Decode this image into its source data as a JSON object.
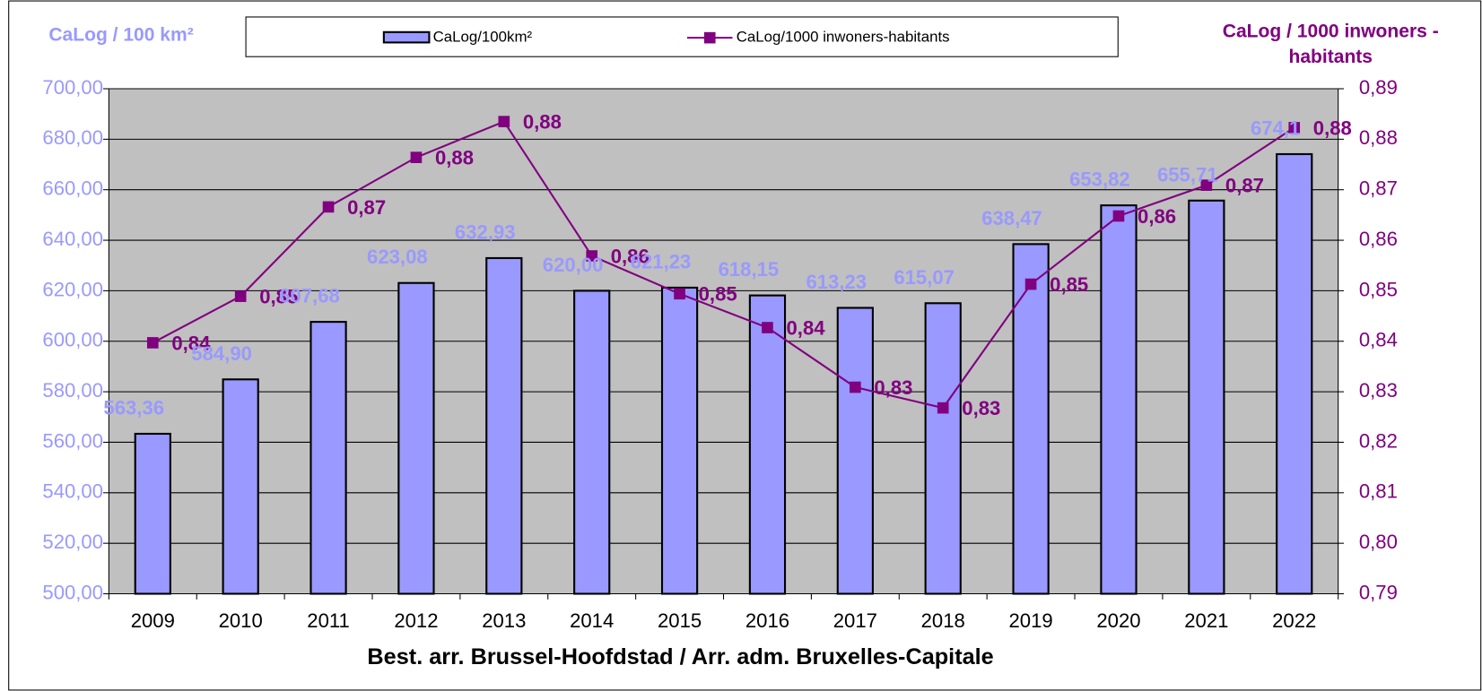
{
  "chart_data": {
    "type": "bar_line",
    "y_label": "CaLog / 100 km²",
    "y2_label": [
      "CaLog / 1000 inwoners -",
      "habitants"
    ],
    "x_label": "Best. arr. Brussel-Hoofdstad / Arr. adm. Bruxelles-Capitale",
    "categories": [
      "2009",
      "2010",
      "2011",
      "2012",
      "2013",
      "2014",
      "2015",
      "2016",
      "2017",
      "2018",
      "2019",
      "2020",
      "2021",
      "2022"
    ],
    "series": [
      {
        "name": "CaLog/100km²",
        "type": "bar",
        "color": "#9999ff",
        "values": [
          563.36,
          584.9,
          607.68,
          623.08,
          632.93,
          620.0,
          621.23,
          618.15,
          613.23,
          615.07,
          638.47,
          653.82,
          655.71,
          674.1
        ],
        "value_labels": [
          "563,36",
          "584,90",
          "607,68",
          "623,08",
          "632,93",
          "620,00",
          "621,23",
          "618,15",
          "613,23",
          "615,07",
          "638,47",
          "653,82",
          "655,71",
          "674,1"
        ]
      },
      {
        "name": "CaLog/1000 inwoners-habitants",
        "type": "line",
        "axis": "y2",
        "color": "#800080",
        "values": [
          0.8397,
          0.8489,
          0.8666,
          0.8764,
          0.8835,
          0.8569,
          0.8494,
          0.8427,
          0.8309,
          0.8268,
          0.8513,
          0.8648,
          0.8709,
          0.8823
        ],
        "value_labels": [
          "0,84",
          "0,85",
          "0,87",
          "0,88",
          "0,88",
          "0,86",
          "0,85",
          "0,84",
          "0,83",
          "0,83",
          "0,85",
          "0,86",
          "0,87",
          "0,88"
        ]
      }
    ],
    "ylim": [
      500,
      700
    ],
    "yticks": [
      {
        "value": 500,
        "label": "500,00"
      },
      {
        "value": 520,
        "label": "520,00"
      },
      {
        "value": 540,
        "label": "540,00"
      },
      {
        "value": 560,
        "label": "560,00"
      },
      {
        "value": 580,
        "label": "580,00"
      },
      {
        "value": 600,
        "label": "600,00"
      },
      {
        "value": 620,
        "label": "620,00"
      },
      {
        "value": 640,
        "label": "640,00"
      },
      {
        "value": 660,
        "label": "660,00"
      },
      {
        "value": 680,
        "label": "680,00"
      },
      {
        "value": 700,
        "label": "700,00"
      }
    ],
    "y2lim": [
      0.79,
      0.89
    ],
    "y2ticks": [
      {
        "value": 0.79,
        "label": "0,79"
      },
      {
        "value": 0.8,
        "label": "0,80"
      },
      {
        "value": 0.81,
        "label": "0,81"
      },
      {
        "value": 0.82,
        "label": "0,82"
      },
      {
        "value": 0.83,
        "label": "0,83"
      },
      {
        "value": 0.84,
        "label": "0,84"
      },
      {
        "value": 0.85,
        "label": "0,85"
      },
      {
        "value": 0.86,
        "label": "0,86"
      },
      {
        "value": 0.87,
        "label": "0,87"
      },
      {
        "value": 0.88,
        "label": "0,88"
      },
      {
        "value": 0.89,
        "label": "0,89"
      }
    ],
    "grid": true,
    "legend": "top"
  }
}
